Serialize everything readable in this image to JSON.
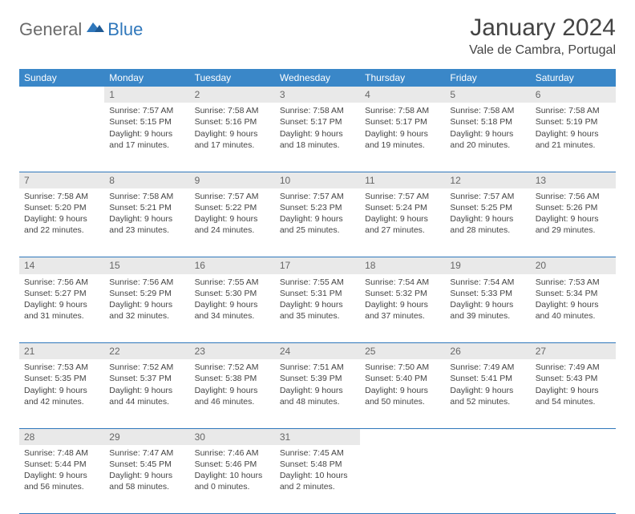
{
  "logo": {
    "general": "General",
    "blue": "Blue"
  },
  "title": "January 2024",
  "location": "Vale de Cambra, Portugal",
  "colors": {
    "header_bg": "#3a87c8",
    "header_text": "#ffffff",
    "daynum_bg": "#e9e9e9",
    "daynum_text": "#666666",
    "border": "#2f77bb",
    "body_text": "#444444",
    "logo_gray": "#6b6b6b",
    "logo_blue": "#2f77bb"
  },
  "weekdays": [
    "Sunday",
    "Monday",
    "Tuesday",
    "Wednesday",
    "Thursday",
    "Friday",
    "Saturday"
  ],
  "weeks": [
    [
      null,
      {
        "d": "1",
        "sr": "7:57 AM",
        "ss": "5:15 PM",
        "dl": "9 hours and 17 minutes."
      },
      {
        "d": "2",
        "sr": "7:58 AM",
        "ss": "5:16 PM",
        "dl": "9 hours and 17 minutes."
      },
      {
        "d": "3",
        "sr": "7:58 AM",
        "ss": "5:17 PM",
        "dl": "9 hours and 18 minutes."
      },
      {
        "d": "4",
        "sr": "7:58 AM",
        "ss": "5:17 PM",
        "dl": "9 hours and 19 minutes."
      },
      {
        "d": "5",
        "sr": "7:58 AM",
        "ss": "5:18 PM",
        "dl": "9 hours and 20 minutes."
      },
      {
        "d": "6",
        "sr": "7:58 AM",
        "ss": "5:19 PM",
        "dl": "9 hours and 21 minutes."
      }
    ],
    [
      {
        "d": "7",
        "sr": "7:58 AM",
        "ss": "5:20 PM",
        "dl": "9 hours and 22 minutes."
      },
      {
        "d": "8",
        "sr": "7:58 AM",
        "ss": "5:21 PM",
        "dl": "9 hours and 23 minutes."
      },
      {
        "d": "9",
        "sr": "7:57 AM",
        "ss": "5:22 PM",
        "dl": "9 hours and 24 minutes."
      },
      {
        "d": "10",
        "sr": "7:57 AM",
        "ss": "5:23 PM",
        "dl": "9 hours and 25 minutes."
      },
      {
        "d": "11",
        "sr": "7:57 AM",
        "ss": "5:24 PM",
        "dl": "9 hours and 27 minutes."
      },
      {
        "d": "12",
        "sr": "7:57 AM",
        "ss": "5:25 PM",
        "dl": "9 hours and 28 minutes."
      },
      {
        "d": "13",
        "sr": "7:56 AM",
        "ss": "5:26 PM",
        "dl": "9 hours and 29 minutes."
      }
    ],
    [
      {
        "d": "14",
        "sr": "7:56 AM",
        "ss": "5:27 PM",
        "dl": "9 hours and 31 minutes."
      },
      {
        "d": "15",
        "sr": "7:56 AM",
        "ss": "5:29 PM",
        "dl": "9 hours and 32 minutes."
      },
      {
        "d": "16",
        "sr": "7:55 AM",
        "ss": "5:30 PM",
        "dl": "9 hours and 34 minutes."
      },
      {
        "d": "17",
        "sr": "7:55 AM",
        "ss": "5:31 PM",
        "dl": "9 hours and 35 minutes."
      },
      {
        "d": "18",
        "sr": "7:54 AM",
        "ss": "5:32 PM",
        "dl": "9 hours and 37 minutes."
      },
      {
        "d": "19",
        "sr": "7:54 AM",
        "ss": "5:33 PM",
        "dl": "9 hours and 39 minutes."
      },
      {
        "d": "20",
        "sr": "7:53 AM",
        "ss": "5:34 PM",
        "dl": "9 hours and 40 minutes."
      }
    ],
    [
      {
        "d": "21",
        "sr": "7:53 AM",
        "ss": "5:35 PM",
        "dl": "9 hours and 42 minutes."
      },
      {
        "d": "22",
        "sr": "7:52 AM",
        "ss": "5:37 PM",
        "dl": "9 hours and 44 minutes."
      },
      {
        "d": "23",
        "sr": "7:52 AM",
        "ss": "5:38 PM",
        "dl": "9 hours and 46 minutes."
      },
      {
        "d": "24",
        "sr": "7:51 AM",
        "ss": "5:39 PM",
        "dl": "9 hours and 48 minutes."
      },
      {
        "d": "25",
        "sr": "7:50 AM",
        "ss": "5:40 PM",
        "dl": "9 hours and 50 minutes."
      },
      {
        "d": "26",
        "sr": "7:49 AM",
        "ss": "5:41 PM",
        "dl": "9 hours and 52 minutes."
      },
      {
        "d": "27",
        "sr": "7:49 AM",
        "ss": "5:43 PM",
        "dl": "9 hours and 54 minutes."
      }
    ],
    [
      {
        "d": "28",
        "sr": "7:48 AM",
        "ss": "5:44 PM",
        "dl": "9 hours and 56 minutes."
      },
      {
        "d": "29",
        "sr": "7:47 AM",
        "ss": "5:45 PM",
        "dl": "9 hours and 58 minutes."
      },
      {
        "d": "30",
        "sr": "7:46 AM",
        "ss": "5:46 PM",
        "dl": "10 hours and 0 minutes."
      },
      {
        "d": "31",
        "sr": "7:45 AM",
        "ss": "5:48 PM",
        "dl": "10 hours and 2 minutes."
      },
      null,
      null,
      null
    ]
  ],
  "labels": {
    "sunrise": "Sunrise: ",
    "sunset": "Sunset: ",
    "daylight": "Daylight: "
  }
}
